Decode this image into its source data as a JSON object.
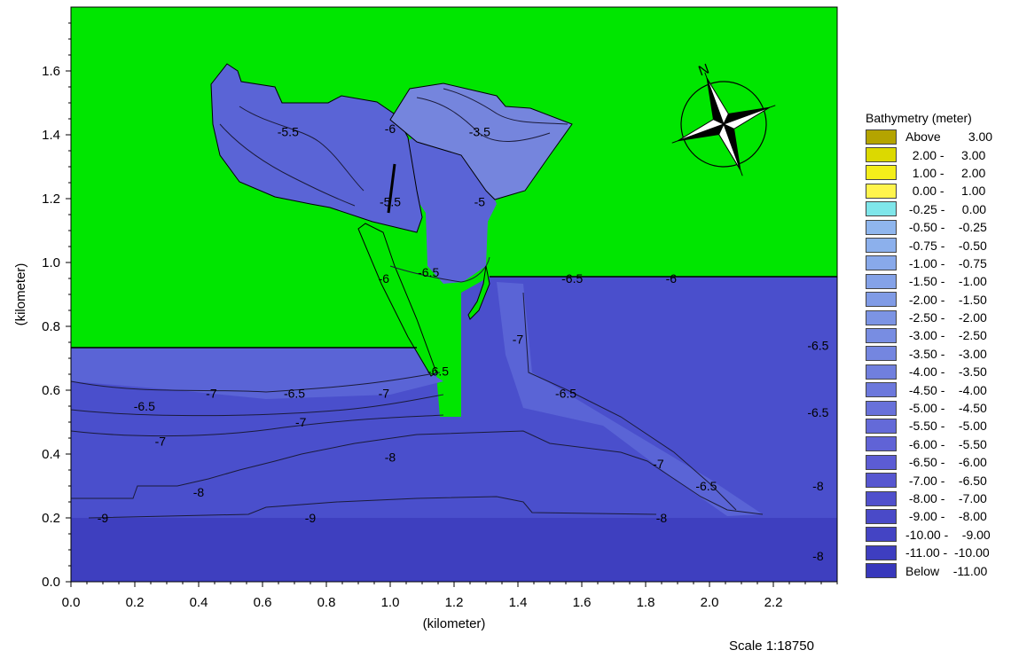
{
  "colors": {
    "land": "#00e600",
    "outer_water": "#4a4fcc",
    "deep_water": "#3e3fbf",
    "basin": "#5a64d6",
    "shallow": "#7585dd",
    "contour": "#1b1b3a",
    "compass_dark": "#000000",
    "compass_light": "#ffffff"
  },
  "legend": {
    "title": "Bathymetry (meter)",
    "items": [
      {
        "label": "Above        3.00",
        "color": "#b4a400"
      },
      {
        "label": "  2.00 -     3.00",
        "color": "#dcd900"
      },
      {
        "label": "  1.00 -     2.00",
        "color": "#f4ee1a"
      },
      {
        "label": "  0.00 -     1.00",
        "color": "#fff44d"
      },
      {
        "label": " -0.25 -     0.00",
        "color": "#7fe6ea"
      },
      {
        "label": " -0.50 -    -0.25",
        "color": "#8fb6ee"
      },
      {
        "label": " -0.75 -    -0.50",
        "color": "#8cb0ec"
      },
      {
        "label": " -1.00 -    -0.75",
        "color": "#88a9ea"
      },
      {
        "label": " -1.50 -    -1.00",
        "color": "#84a2e8"
      },
      {
        "label": " -2.00 -    -1.50",
        "color": "#809be6"
      },
      {
        "label": " -2.50 -    -2.00",
        "color": "#7c94e4"
      },
      {
        "label": " -3.00 -    -2.50",
        "color": "#788de2"
      },
      {
        "label": " -3.50 -    -3.00",
        "color": "#7486e0"
      },
      {
        "label": " -4.00 -    -3.50",
        "color": "#707fde"
      },
      {
        "label": " -4.50 -    -4.00",
        "color": "#6c78dc"
      },
      {
        "label": " -5.00 -    -4.50",
        "color": "#6871da"
      },
      {
        "label": " -5.50 -    -5.00",
        "color": "#646ad8"
      },
      {
        "label": " -6.00 -    -5.50",
        "color": "#6063d6"
      },
      {
        "label": " -6.50 -    -6.00",
        "color": "#5c5cd4"
      },
      {
        "label": " -7.00 -    -6.50",
        "color": "#5656d0"
      },
      {
        "label": " -8.00 -    -7.00",
        "color": "#5050cc"
      },
      {
        "label": " -9.00 -    -8.00",
        "color": "#4a4ac8"
      },
      {
        "label": "-10.00 -    -9.00",
        "color": "#4444c4"
      },
      {
        "label": "-11.00 -  -10.00",
        "color": "#3e3ec0"
      },
      {
        "label": "Below    -11.00",
        "color": "#3838bc"
      }
    ]
  },
  "scale_text": "Scale 1:18750",
  "compass_label": "N",
  "chart_data": {
    "type": "heatmap",
    "title": "",
    "xlabel": "(kilometer)",
    "ylabel": "(kilometer)",
    "xlim": [
      0.0,
      2.4
    ],
    "ylim": [
      0.0,
      1.8
    ],
    "xticks": [
      "0.0",
      "0.2",
      "0.4",
      "0.6",
      "0.8",
      "1.0",
      "1.2",
      "1.4",
      "1.6",
      "1.8",
      "2.0",
      "2.2"
    ],
    "yticks": [
      "0.0",
      "0.2",
      "0.4",
      "0.6",
      "0.8",
      "1.0",
      "1.2",
      "1.4",
      "1.6"
    ],
    "contour_labels": [
      {
        "text": "-5.5",
        "x": 0.68,
        "y": 1.41
      },
      {
        "text": "-6",
        "x": 1.0,
        "y": 1.42
      },
      {
        "text": "-3.5",
        "x": 1.28,
        "y": 1.41
      },
      {
        "text": "-5",
        "x": 1.28,
        "y": 1.19
      },
      {
        "text": "-5.5",
        "x": 1.0,
        "y": 1.19
      },
      {
        "text": "-6.5",
        "x": 1.12,
        "y": 0.97
      },
      {
        "text": "-6",
        "x": 0.98,
        "y": 0.95
      },
      {
        "text": "-6.5",
        "x": 1.57,
        "y": 0.95
      },
      {
        "text": "-6",
        "x": 1.88,
        "y": 0.95
      },
      {
        "text": "-6.5",
        "x": 1.15,
        "y": 0.66
      },
      {
        "text": "-7",
        "x": 1.4,
        "y": 0.76
      },
      {
        "text": "-7",
        "x": 0.44,
        "y": 0.59
      },
      {
        "text": "-6.5",
        "x": 0.7,
        "y": 0.59
      },
      {
        "text": "-7",
        "x": 0.98,
        "y": 0.59
      },
      {
        "text": "-6.5",
        "x": 1.55,
        "y": 0.59
      },
      {
        "text": "-6.5",
        "x": 0.23,
        "y": 0.55
      },
      {
        "text": "-7",
        "x": 0.72,
        "y": 0.5
      },
      {
        "text": "-7",
        "x": 0.28,
        "y": 0.44
      },
      {
        "text": "-8",
        "x": 1.0,
        "y": 0.39
      },
      {
        "text": "-7",
        "x": 1.84,
        "y": 0.37
      },
      {
        "text": "-6.5",
        "x": 1.99,
        "y": 0.3
      },
      {
        "text": "-8",
        "x": 0.4,
        "y": 0.28
      },
      {
        "text": "-9",
        "x": 0.1,
        "y": 0.2
      },
      {
        "text": "-9",
        "x": 0.75,
        "y": 0.2
      },
      {
        "text": "-8",
        "x": 1.85,
        "y": 0.2
      },
      {
        "text": "-6.5",
        "x": 2.34,
        "y": 0.74
      },
      {
        "text": "-6.5",
        "x": 2.34,
        "y": 0.53
      },
      {
        "text": "-8",
        "x": 2.34,
        "y": 0.3
      },
      {
        "text": "-8",
        "x": 2.34,
        "y": 0.08
      }
    ]
  }
}
